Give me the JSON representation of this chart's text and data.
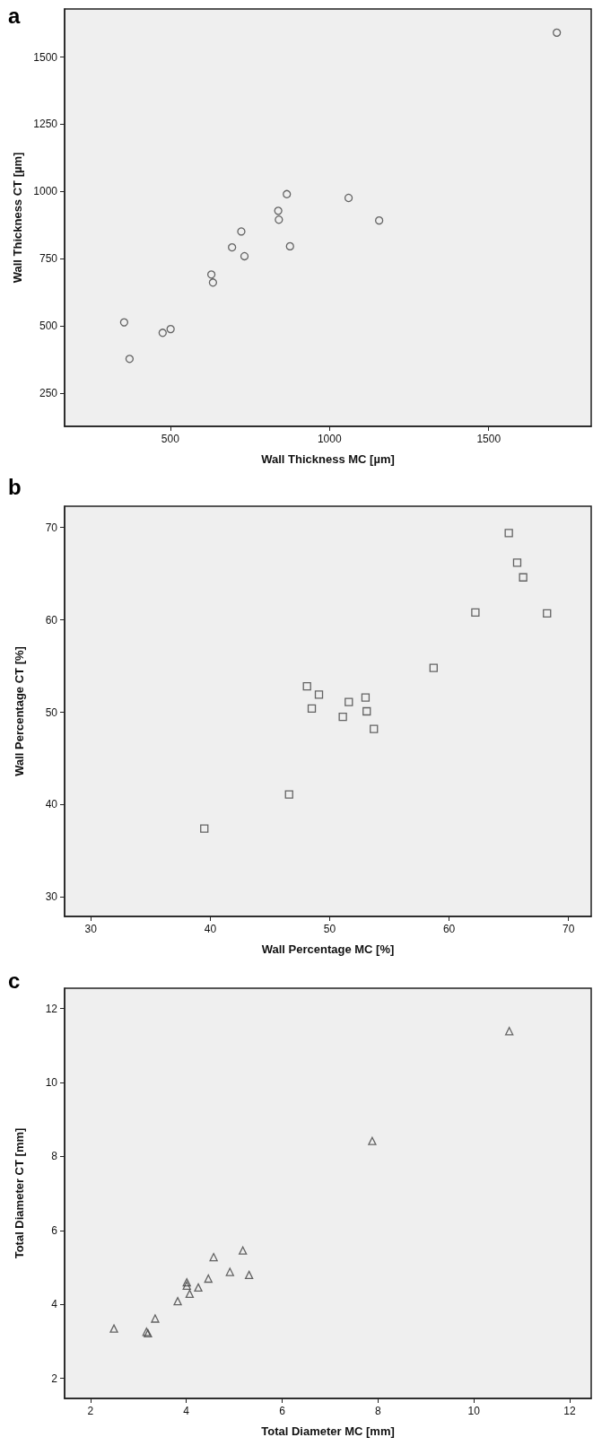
{
  "chart_data": [
    {
      "type": "scatter",
      "title": "a",
      "xlabel": "Wall Thickness MC [µm]",
      "ylabel": "Wall Thickness CT [µm]",
      "marker": "circle",
      "grid": false,
      "xlim": [
        168,
        1822
      ],
      "ylim": [
        126,
        1679
      ],
      "xticks": [
        500,
        1000,
        1500
      ],
      "yticks": [
        250,
        500,
        750,
        1000,
        1250,
        1500
      ],
      "series": [
        {
          "color": "#404040",
          "x": [
            1714,
            355,
            372,
            476,
            501,
            629,
            634,
            694,
            723,
            733,
            839,
            841,
            866,
            876,
            1060,
            1156
          ],
          "values": [
            1591,
            513,
            377,
            474,
            488,
            691,
            661,
            792,
            851,
            759,
            928,
            895,
            990,
            796,
            976,
            892
          ]
        }
      ]
    },
    {
      "type": "scatter",
      "title": "b",
      "xlabel": "Wall Percentage MC [%]",
      "ylabel": "Wall Percentage CT [%]",
      "marker": "square",
      "grid": false,
      "xlim": [
        27.8,
        71.9
      ],
      "ylim": [
        27.9,
        72.3
      ],
      "xticks": [
        30,
        40,
        50,
        60,
        70
      ],
      "yticks": [
        30,
        40,
        50,
        60,
        70
      ],
      "series": [
        {
          "color": "#404040",
          "x": [
            65.0,
            65.7,
            66.2,
            62.2,
            68.2,
            58.7,
            48.1,
            49.1,
            48.5,
            51.6,
            53.0,
            53.1,
            51.1,
            53.7,
            46.6,
            39.5
          ],
          "values": [
            69.4,
            66.2,
            64.6,
            60.8,
            60.7,
            54.8,
            52.8,
            51.9,
            50.4,
            51.1,
            51.6,
            50.1,
            49.5,
            48.2,
            41.1,
            37.4
          ]
        }
      ]
    },
    {
      "type": "scatter",
      "title": "c",
      "xlabel": "Total Diameter MC [mm]",
      "ylabel": "Total Diameter CT [mm]",
      "marker": "triangle",
      "grid": false,
      "xlim": [
        1.46,
        12.45
      ],
      "ylim": [
        1.46,
        12.55
      ],
      "xticks": [
        2,
        4,
        6,
        8,
        10,
        12
      ],
      "yticks": [
        2,
        4,
        6,
        8,
        10,
        12
      ],
      "series": [
        {
          "color": "#404040",
          "x": [
            10.74,
            7.88,
            2.49,
            3.17,
            3.2,
            3.35,
            3.82,
            4.01,
            4.01,
            4.07,
            4.25,
            4.46,
            4.57,
            4.91,
            5.18,
            5.31
          ],
          "values": [
            11.39,
            8.42,
            3.35,
            3.26,
            3.22,
            3.62,
            4.09,
            4.6,
            4.51,
            4.29,
            4.46,
            4.7,
            5.28,
            4.88,
            5.46,
            4.8
          ]
        }
      ]
    }
  ]
}
